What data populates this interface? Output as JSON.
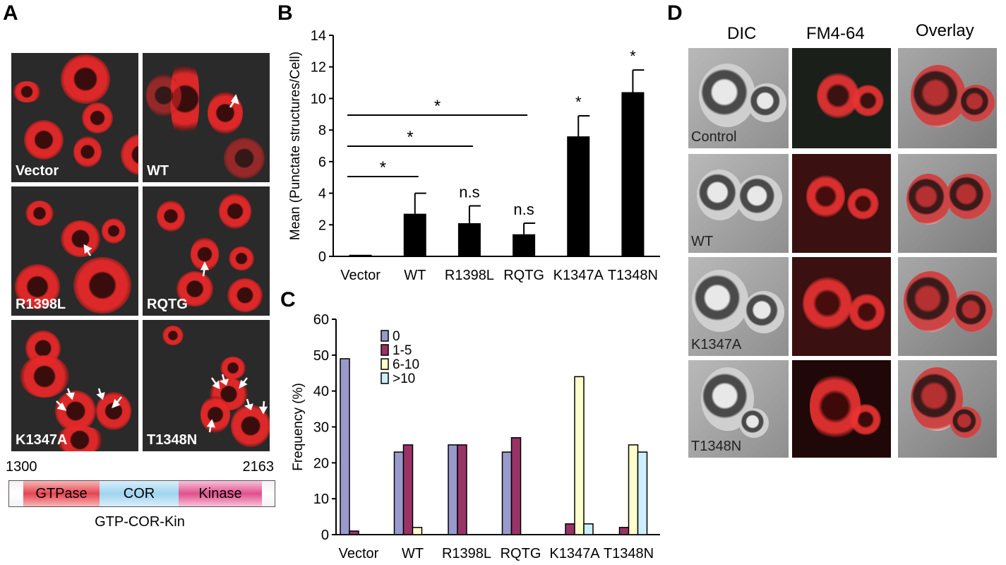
{
  "panels": {
    "a": "A",
    "b": "B",
    "c": "C",
    "d": "D"
  },
  "panel_a": {
    "images": [
      "Vector",
      "WT",
      "R1398L",
      "RQTG",
      "K1347A",
      "T1348N"
    ],
    "domain": {
      "start": "1300",
      "end": "2163",
      "segments": [
        {
          "label": "GTPase",
          "color": "#e64550"
        },
        {
          "label": "COR",
          "color": "#9fd4ef"
        },
        {
          "label": "Kinase",
          "color": "#e0508c"
        }
      ],
      "name": "GTP-COR-Kin"
    }
  },
  "chart_data": [
    {
      "type": "bar",
      "panel": "B",
      "categories": [
        "Vector",
        "WT",
        "R1398L",
        "RQTG",
        "K1347A",
        "T1348N"
      ],
      "values": [
        0.1,
        2.7,
        2.1,
        1.4,
        7.6,
        10.4
      ],
      "errors": [
        0,
        1.3,
        1.1,
        0.7,
        1.3,
        1.4
      ],
      "ylabel": "Mean (Punctate structures/Cell)",
      "ylim": [
        0,
        14
      ],
      "yticks": [
        "0",
        "2",
        "4",
        "6",
        "8",
        "10",
        "12",
        "14"
      ],
      "bar_labels": [
        "",
        "",
        "n.s",
        "n.s",
        "*",
        "*"
      ],
      "significance": [
        {
          "from": "Vector",
          "to": "WT",
          "label": "*"
        },
        {
          "from": "Vector",
          "to": "R1398L",
          "label": "*"
        },
        {
          "from": "Vector",
          "to": "RQTG",
          "label": "*"
        }
      ],
      "color": "#000000"
    },
    {
      "type": "bar",
      "panel": "C",
      "categories": [
        "Vector",
        "WT",
        "R1398L",
        "RQTG",
        "K1347A",
        "T1348N"
      ],
      "series": [
        {
          "name": "0",
          "color": "#9999cc",
          "values": [
            49,
            23,
            25,
            23,
            0,
            0
          ]
        },
        {
          "name": "1-5",
          "color": "#993366",
          "values": [
            1,
            25,
            25,
            27,
            3,
            2
          ]
        },
        {
          "name": "6-10",
          "color": "#ffffcc",
          "values": [
            0,
            2,
            0,
            0,
            44,
            25
          ]
        },
        {
          "name": ">10",
          "color": "#cceeff",
          "values": [
            0,
            0,
            0,
            0,
            3,
            23
          ]
        }
      ],
      "ylabel": "Frequency (%)",
      "ylim": [
        0,
        60
      ],
      "yticks": [
        "0",
        "10",
        "20",
        "30",
        "40",
        "50",
        "60"
      ],
      "legend": "top-center"
    }
  ],
  "panel_d": {
    "columns": [
      "DIC",
      "FM4-64",
      "Overlay"
    ],
    "rows": [
      "Control",
      "WT",
      "K1347A",
      "T1348N"
    ]
  }
}
